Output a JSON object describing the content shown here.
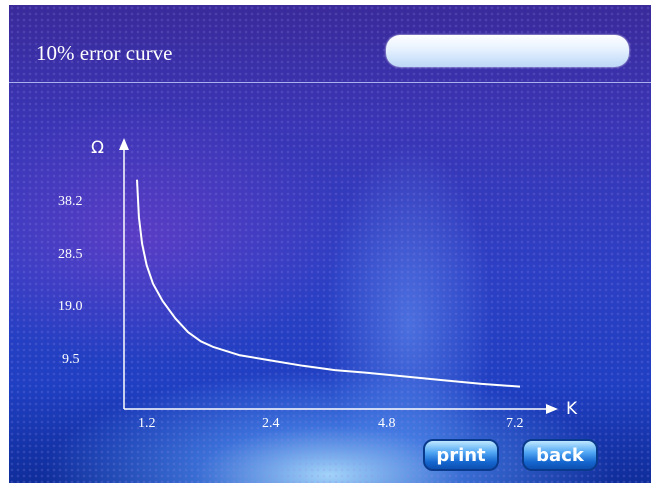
{
  "header": {
    "title": "10% error curve",
    "status_value": ""
  },
  "chart_data": {
    "type": "line",
    "ylabel": "Ω",
    "xlabel": "K",
    "x_ticks": [
      "1.2",
      "2.4",
      "4.8",
      "7.2"
    ],
    "y_ticks": [
      "38.2",
      "28.5",
      "19.0",
      "9.5"
    ],
    "series": [
      {
        "x": [
          1.2,
          1.23,
          1.28,
          1.35,
          1.45,
          1.6,
          1.8,
          2.0,
          2.2,
          2.4,
          2.8,
          3.3,
          3.8,
          4.3,
          4.8,
          5.4,
          6.0,
          6.6,
          7.2
        ],
        "y": [
          42.0,
          35.0,
          30.0,
          26.0,
          22.5,
          19.3,
          16.0,
          13.4,
          11.7,
          10.6,
          9.1,
          8.1,
          7.1,
          6.3,
          5.8,
          5.1,
          4.4,
          3.7,
          3.2
        ]
      }
    ],
    "line_color": "#ffffff"
  },
  "buttons": {
    "print": "print",
    "back": "back"
  }
}
